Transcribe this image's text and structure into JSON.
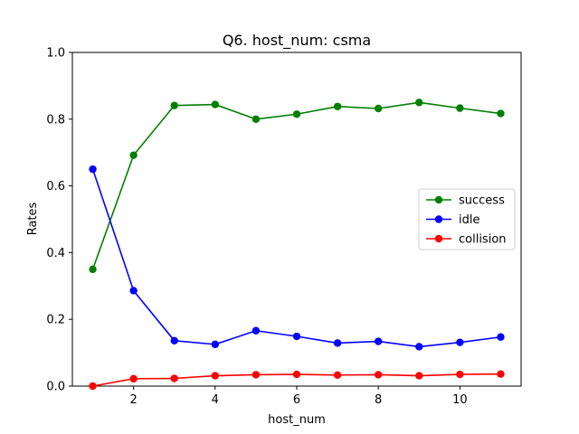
{
  "chart_data": {
    "type": "line",
    "title": "Q6. host_num: csma",
    "xlabel": "host_num",
    "ylabel": "Rates",
    "x": [
      1,
      2,
      3,
      4,
      5,
      6,
      7,
      8,
      9,
      10,
      11
    ],
    "xlim": [
      0.5,
      11.5
    ],
    "ylim": [
      0.0,
      1.0
    ],
    "xticks": [
      2,
      4,
      6,
      8,
      10
    ],
    "xtick_labels": [
      "2",
      "4",
      "6",
      "8",
      "10"
    ],
    "yticks": [
      0.0,
      0.2,
      0.4,
      0.6,
      0.8,
      1.0
    ],
    "ytick_labels": [
      "0.0",
      "0.2",
      "0.4",
      "0.6",
      "0.8",
      "1.0"
    ],
    "grid": false,
    "legend_position": "center-right",
    "series": [
      {
        "name": "success",
        "color": "#008000",
        "values": [
          0.35,
          0.692,
          0.841,
          0.844,
          0.8,
          0.815,
          0.838,
          0.832,
          0.85,
          0.833,
          0.817
        ]
      },
      {
        "name": "idle",
        "color": "#0000ff",
        "values": [
          0.65,
          0.286,
          0.136,
          0.125,
          0.166,
          0.149,
          0.129,
          0.134,
          0.118,
          0.131,
          0.147
        ]
      },
      {
        "name": "collision",
        "color": "#ff0000",
        "values": [
          0.0,
          0.022,
          0.023,
          0.031,
          0.034,
          0.035,
          0.033,
          0.034,
          0.031,
          0.035,
          0.036
        ]
      }
    ]
  }
}
